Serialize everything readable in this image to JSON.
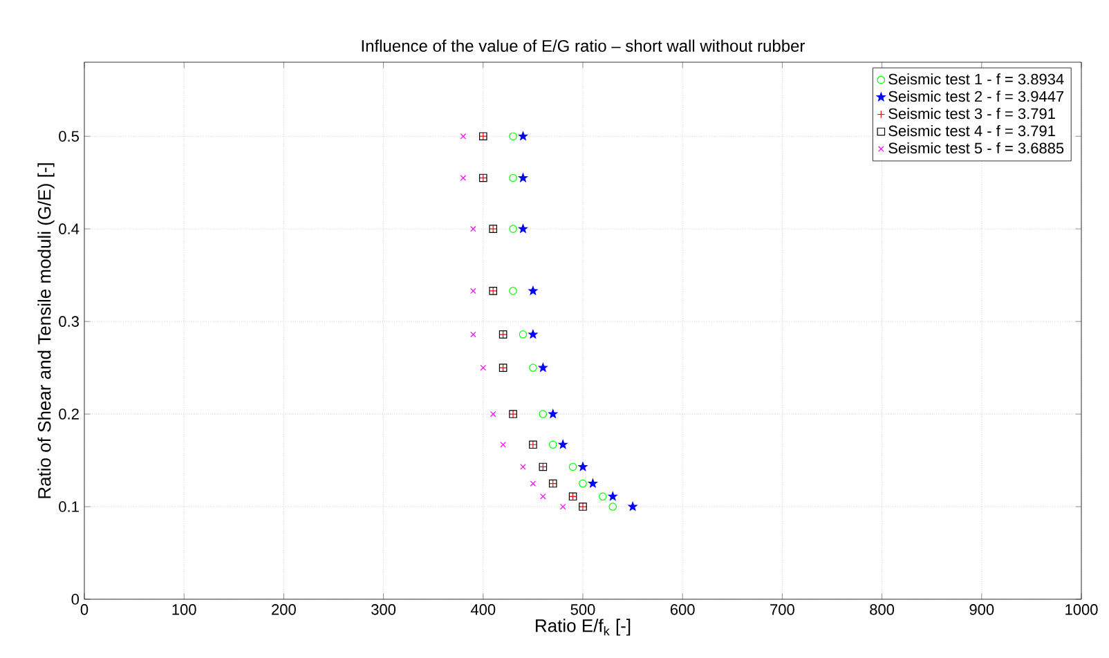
{
  "chart_data": {
    "type": "scatter",
    "title": "Influence of the value of E/G ratio – short wall without rubber",
    "xlabel": "Ratio E/f$_{k}$ [-]",
    "ylabel": "Ratio of Shear and Tensile moduli (G/E) [-]",
    "xlim": [
      0,
      1000
    ],
    "ylim": [
      0,
      0.58
    ],
    "xticks": [
      0,
      100,
      200,
      300,
      400,
      500,
      600,
      700,
      800,
      900,
      1000
    ],
    "yticks": [
      0,
      0.1,
      0.2,
      0.3,
      0.4,
      0.5
    ],
    "grid": true,
    "legend": "top right",
    "series": [
      {
        "name": "Seismic test 1 - f = 3.8934",
        "color": "#00ff00",
        "marker": "circle",
        "x": [
          430,
          430,
          430,
          430,
          440,
          450,
          460,
          470,
          490,
          500,
          520,
          530
        ],
        "values": [
          0.5,
          0.455,
          0.4,
          0.333,
          0.286,
          0.25,
          0.2,
          0.167,
          0.143,
          0.125,
          0.111,
          0.1
        ]
      },
      {
        "name": "Seismic test 2 - f = 3.9447",
        "color": "#0000ff",
        "marker": "star",
        "x": [
          440,
          440,
          440,
          450,
          450,
          460,
          470,
          480,
          500,
          510,
          530,
          550
        ],
        "values": [
          0.5,
          0.455,
          0.4,
          0.333,
          0.286,
          0.25,
          0.2,
          0.167,
          0.143,
          0.125,
          0.111,
          0.1
        ]
      },
      {
        "name": "Seismic test 3 - f = 3.791",
        "color": "#ff0000",
        "marker": "plus",
        "x": [
          400,
          400,
          410,
          410,
          420,
          420,
          430,
          450,
          460,
          470,
          490,
          500
        ],
        "values": [
          0.5,
          0.455,
          0.4,
          0.333,
          0.286,
          0.25,
          0.2,
          0.167,
          0.143,
          0.125,
          0.111,
          0.1
        ]
      },
      {
        "name": "Seismic test 4 - f = 3.791",
        "color": "#000000",
        "marker": "square",
        "x": [
          400,
          400,
          410,
          410,
          420,
          420,
          430,
          450,
          460,
          470,
          490,
          500
        ],
        "values": [
          0.5,
          0.455,
          0.4,
          0.333,
          0.286,
          0.25,
          0.2,
          0.167,
          0.143,
          0.125,
          0.111,
          0.1
        ]
      },
      {
        "name": "Seismic test 5 - f = 3.6885",
        "color": "#ff00ff",
        "marker": "cross",
        "x": [
          380,
          380,
          390,
          390,
          390,
          400,
          410,
          420,
          440,
          450,
          460,
          480
        ],
        "values": [
          0.5,
          0.455,
          0.4,
          0.333,
          0.286,
          0.25,
          0.2,
          0.167,
          0.143,
          0.125,
          0.111,
          0.1
        ]
      }
    ]
  }
}
